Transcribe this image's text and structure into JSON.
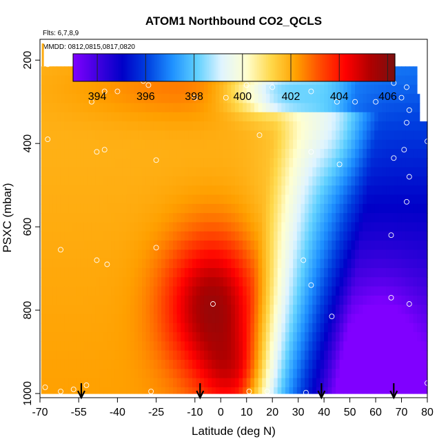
{
  "chart_data": {
    "type": "heatmap",
    "title": "ATOM1 Northbound CO2_QCLS",
    "subtitle_lines": [
      "Flts: 6,7,8,9",
      "MMDD: 0812,0815,0817,0820"
    ],
    "xlabel": "Latitude (deg N)",
    "ylabel": "PSXC (mbar)",
    "x_ticks": [
      -70,
      -55,
      -40,
      -25,
      -10,
      0,
      10,
      20,
      30,
      40,
      50,
      60,
      70,
      80
    ],
    "y_ticks": [
      200,
      400,
      600,
      800,
      1000
    ],
    "xlim": [
      -70,
      80
    ],
    "ylim": [
      1010,
      150
    ],
    "colorbar": {
      "range": [
        393,
        406.3
      ],
      "ticks": [
        394,
        396,
        398,
        400,
        402,
        404,
        406
      ],
      "lines": [
        394,
        396,
        398,
        400,
        402,
        404,
        406
      ],
      "palette": [
        "#8000ff",
        "#4000e0",
        "#0000c8",
        "#0040e0",
        "#1e90ff",
        "#5fd0ff",
        "#e0f4ff",
        "#ffffd0",
        "#ffd84a",
        "#ffa000",
        "#ff4a00",
        "#ff0000",
        "#b00000",
        "#7a1010"
      ]
    },
    "pressure_levels": [
      200,
      250,
      300,
      350,
      400,
      450,
      500,
      550,
      600,
      650,
      700,
      750,
      800,
      850,
      900,
      950,
      1000
    ],
    "profile_latitudes": [
      -54,
      -8,
      39,
      67
    ],
    "profile_label": "",
    "observations": [
      {
        "lat": -67,
        "p": 210
      },
      {
        "lat": -50,
        "p": 300
      },
      {
        "lat": -45,
        "p": 275
      },
      {
        "lat": -40,
        "p": 275
      },
      {
        "lat": -30,
        "p": 250
      },
      {
        "lat": -28,
        "p": 260
      },
      {
        "lat": -20,
        "p": 240
      },
      {
        "lat": -15,
        "p": 245
      },
      {
        "lat": -7,
        "p": 245
      },
      {
        "lat": -10,
        "p": 290
      },
      {
        "lat": 2,
        "p": 290
      },
      {
        "lat": 10,
        "p": 260
      },
      {
        "lat": 20,
        "p": 265
      },
      {
        "lat": 35,
        "p": 275
      },
      {
        "lat": 45,
        "p": 300
      },
      {
        "lat": 52,
        "p": 300
      },
      {
        "lat": 60,
        "p": 300
      },
      {
        "lat": 67,
        "p": 255
      },
      {
        "lat": 72,
        "p": 265
      },
      {
        "lat": 70,
        "p": 290
      },
      {
        "lat": 73,
        "p": 320
      },
      {
        "lat": 72,
        "p": 350
      },
      {
        "lat": 80,
        "p": 395
      },
      {
        "lat": 71,
        "p": 415
      },
      {
        "lat": 67,
        "p": 435
      },
      {
        "lat": 73,
        "p": 480
      },
      {
        "lat": 72,
        "p": 540
      },
      {
        "lat": 66,
        "p": 620
      },
      {
        "lat": -67,
        "p": 390
      },
      {
        "lat": -48,
        "p": 420
      },
      {
        "lat": -45,
        "p": 415
      },
      {
        "lat": -25,
        "p": 440
      },
      {
        "lat": 15,
        "p": 380
      },
      {
        "lat": 35,
        "p": 420
      },
      {
        "lat": 46,
        "p": 450
      },
      {
        "lat": -62,
        "p": 655
      },
      {
        "lat": -48,
        "p": 680
      },
      {
        "lat": -44,
        "p": 690
      },
      {
        "lat": -25,
        "p": 650
      },
      {
        "lat": 32,
        "p": 680
      },
      {
        "lat": 35,
        "p": 740
      },
      {
        "lat": -3,
        "p": 785
      },
      {
        "lat": 43,
        "p": 815
      },
      {
        "lat": 66,
        "p": 770
      },
      {
        "lat": 73,
        "p": 785
      },
      {
        "lat": -68,
        "p": 985
      },
      {
        "lat": -62,
        "p": 995
      },
      {
        "lat": -57,
        "p": 990
      },
      {
        "lat": -52,
        "p": 980
      },
      {
        "lat": -27,
        "p": 995
      },
      {
        "lat": 11,
        "p": 995
      },
      {
        "lat": 18,
        "p": 995
      },
      {
        "lat": 33,
        "p": 998
      },
      {
        "lat": 80,
        "p": 975
      }
    ]
  }
}
